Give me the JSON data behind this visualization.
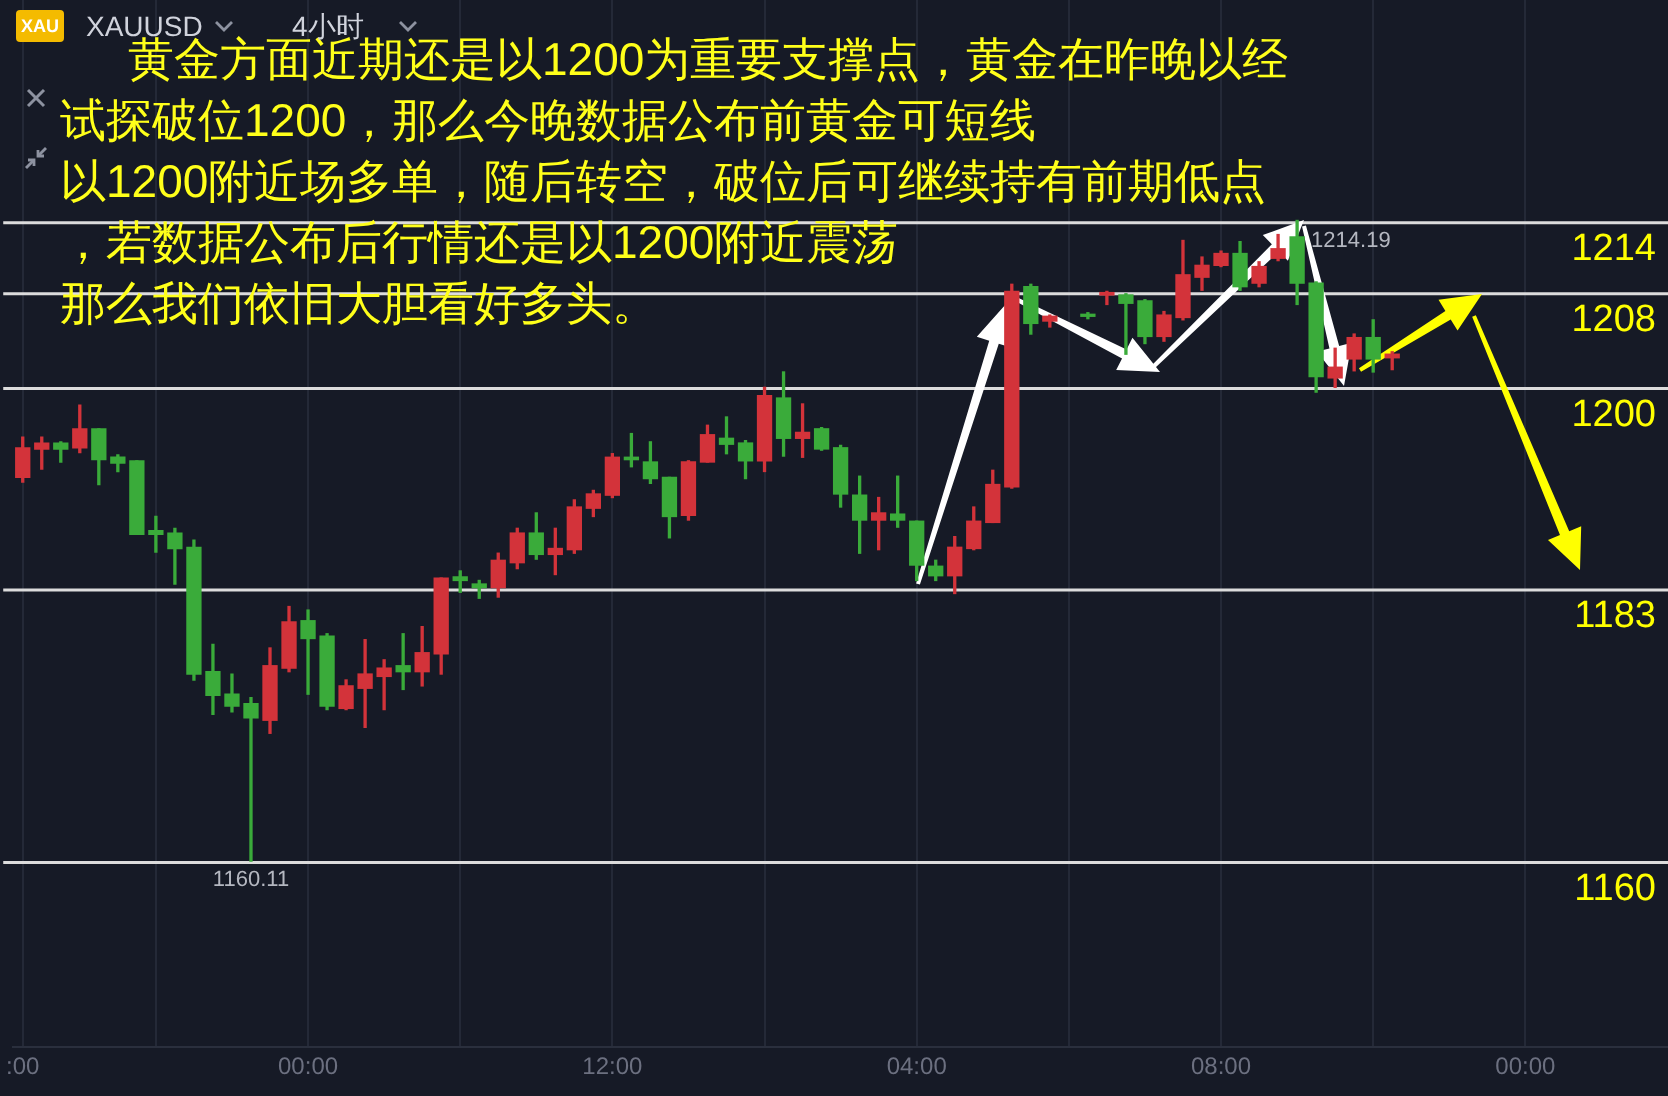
{
  "chart_data": {
    "type": "candlestick",
    "title": "XAUUSD",
    "subtitle": "4小时",
    "categories": [
      ":00",
      null,
      null,
      null,
      null,
      null,
      null,
      null,
      null,
      null,
      null,
      null,
      null,
      null,
      null,
      "00:00",
      null,
      null,
      null,
      null,
      null,
      null,
      null,
      null,
      null,
      null,
      null,
      null,
      null,
      null,
      null,
      "12:00",
      null,
      null,
      null,
      null,
      null,
      null,
      null,
      null,
      null,
      null,
      null,
      null,
      null,
      null,
      null,
      "04:00",
      null,
      null,
      null,
      null,
      null,
      null,
      null,
      null,
      null,
      null,
      null,
      null,
      null,
      null,
      null,
      "08:00",
      null,
      null,
      null,
      null,
      null,
      null,
      null,
      null,
      null,
      null,
      null,
      null,
      null,
      null,
      null,
      "00:00",
      null,
      null,
      null,
      null,
      null,
      null,
      null
    ],
    "ohlc": [
      [
        1192.5,
        1195.9,
        1192.1,
        1195.0
      ],
      [
        1194.9,
        1195.9,
        1193.2,
        1195.4
      ],
      [
        1195.4,
        1195.5,
        1193.8,
        1194.9
      ],
      [
        1195.0,
        1198.6,
        1194.6,
        1196.6
      ],
      [
        1196.6,
        1196.6,
        1191.9,
        1194.0
      ],
      [
        1194.2,
        1194.4,
        1193.0,
        1193.7
      ],
      [
        1193.9,
        1193.9,
        1187.7,
        1187.7
      ],
      [
        1188.0,
        1189.2,
        1186.2,
        1187.7
      ],
      [
        1187.8,
        1188.2,
        1183.5,
        1186.5
      ],
      [
        1186.6,
        1187.2,
        1175.4,
        1175.9
      ],
      [
        1176.1,
        1178.4,
        1172.5,
        1174.1
      ],
      [
        1174.2,
        1175.9,
        1172.7,
        1173.2
      ],
      [
        1173.4,
        1173.9,
        1160.11,
        1172.2
      ],
      [
        1172.0,
        1178.1,
        1170.9,
        1176.6
      ],
      [
        1176.4,
        1181.6,
        1176.1,
        1180.3
      ],
      [
        1180.4,
        1181.3,
        1174.2,
        1178.9
      ],
      [
        1179.1,
        1179.3,
        1172.9,
        1173.2
      ],
      [
        1173.0,
        1175.4,
        1172.9,
        1174.9
      ],
      [
        1174.7,
        1178.8,
        1171.4,
        1175.9
      ],
      [
        1175.7,
        1177.1,
        1172.9,
        1176.4
      ],
      [
        1176.6,
        1179.3,
        1174.6,
        1176.1
      ],
      [
        1176.1,
        1179.9,
        1174.9,
        1177.7
      ],
      [
        1177.6,
        1184.0,
        1175.9,
        1184.0
      ],
      [
        1184.1,
        1184.6,
        1182.8,
        1183.8
      ],
      [
        1183.5,
        1183.8,
        1182.3,
        1183.2
      ],
      [
        1183.2,
        1186.1,
        1182.4,
        1185.5
      ],
      [
        1185.3,
        1188.2,
        1184.8,
        1187.8
      ],
      [
        1187.8,
        1189.5,
        1185.6,
        1186.0
      ],
      [
        1186.0,
        1188.2,
        1184.3,
        1186.5
      ],
      [
        1186.4,
        1190.6,
        1186.1,
        1190.0
      ],
      [
        1189.9,
        1191.4,
        1189.2,
        1191.1
      ],
      [
        1191.0,
        1194.5,
        1190.8,
        1194.2
      ],
      [
        1194.2,
        1196.2,
        1193.4,
        1194.0
      ],
      [
        1193.8,
        1195.5,
        1192.0,
        1192.4
      ],
      [
        1192.5,
        1192.5,
        1187.4,
        1189.2
      ],
      [
        1189.3,
        1193.9,
        1188.9,
        1193.8
      ],
      [
        1193.8,
        1196.9,
        1193.8,
        1196.1
      ],
      [
        1195.8,
        1197.6,
        1194.5,
        1195.3
      ],
      [
        1195.4,
        1195.6,
        1192.4,
        1193.9
      ],
      [
        1193.9,
        1200.1,
        1193.0,
        1199.4
      ],
      [
        1199.2,
        1201.4,
        1194.3,
        1195.8
      ],
      [
        1195.8,
        1198.7,
        1194.2,
        1196.3
      ],
      [
        1196.6,
        1196.7,
        1194.8,
        1194.9
      ],
      [
        1195.0,
        1195.2,
        1190.0,
        1191.1
      ],
      [
        1191.0,
        1192.6,
        1186.1,
        1188.9
      ],
      [
        1188.9,
        1190.8,
        1186.4,
        1189.5
      ],
      [
        1189.4,
        1192.6,
        1188.3,
        1188.9
      ],
      [
        1188.8,
        1188.8,
        1183.8,
        1185.1
      ],
      [
        1185.0,
        1185.5,
        1183.8,
        1184.2
      ],
      [
        1184.2,
        1187.5,
        1182.7,
        1186.6
      ],
      [
        1186.5,
        1190.0,
        1186.4,
        1188.8
      ],
      [
        1188.7,
        1193.1,
        1188.7,
        1191.9
      ],
      [
        1191.7,
        1208.8,
        1191.6,
        1208.2
      ],
      [
        1208.6,
        1208.8,
        1204.6,
        1205.5
      ],
      [
        1205.7,
        1206.2,
        1205.2,
        1206.1
      ],
      null,
      [
        1206.2,
        1206.4,
        1205.9,
        1206.1
      ],
      [
        1207.9,
        1208.2,
        1207.1,
        1208.1
      ],
      [
        1207.9,
        1208.0,
        1202.9,
        1207.2
      ],
      [
        1207.4,
        1207.5,
        1203.8,
        1204.4
      ],
      [
        1204.4,
        1206.5,
        1204.0,
        1206.2
      ],
      [
        1206.0,
        1212.5,
        1205.8,
        1209.6
      ],
      [
        1209.4,
        1211.1,
        1208.3,
        1210.4
      ],
      [
        1210.4,
        1211.6,
        1210.3,
        1211.4
      ],
      [
        1211.4,
        1212.4,
        1208.3,
        1208.6
      ],
      [
        1208.9,
        1210.7,
        1208.6,
        1210.3
      ],
      [
        1211.0,
        1213.0,
        1210.8,
        1211.8
      ],
      [
        1212.8,
        1214.19,
        1207.1,
        1208.9
      ],
      [
        1208.9,
        1209.0,
        1199.7,
        1201.0
      ],
      [
        1200.9,
        1203.4,
        1200.1,
        1201.8
      ],
      [
        1202.5,
        1204.6,
        1201.5,
        1204.3
      ],
      [
        1204.3,
        1205.8,
        1201.4,
        1202.5
      ],
      [
        1202.6,
        1203.1,
        1201.6,
        1202.9
      ],
      null,
      null,
      null,
      null,
      null,
      null,
      null,
      null,
      null,
      null,
      null,
      null,
      null,
      null
    ],
    "colors": [
      "#d3333a",
      "#d3333a",
      "#3aab3a",
      "#d3333a",
      "#3aab3a",
      "#3aab3a",
      "#3aab3a",
      "#3aab3a",
      "#3aab3a",
      "#3aab3a",
      "#3aab3a",
      "#3aab3a",
      "#3aab3a",
      "#d3333a",
      "#d3333a",
      "#3aab3a",
      "#3aab3a",
      "#d3333a",
      "#d3333a",
      "#d3333a",
      "#3aab3a",
      "#d3333a",
      "#d3333a",
      "#3aab3a",
      "#3aab3a",
      "#d3333a",
      "#d3333a",
      "#3aab3a",
      "#d3333a",
      "#d3333a",
      "#d3333a",
      "#d3333a",
      "#3aab3a",
      "#3aab3a",
      "#3aab3a",
      "#d3333a",
      "#d3333a",
      "#3aab3a",
      "#3aab3a",
      "#d3333a",
      "#3aab3a",
      "#d3333a",
      "#3aab3a",
      "#3aab3a",
      "#3aab3a",
      "#d3333a",
      "#3aab3a",
      "#3aab3a",
      "#3aab3a",
      "#d3333a",
      "#d3333a",
      "#d3333a",
      "#d3333a",
      "#3aab3a",
      "#d3333a",
      null,
      "#3aab3a",
      "#d3333a",
      "#3aab3a",
      "#3aab3a",
      "#d3333a",
      "#d3333a",
      "#d3333a",
      "#d3333a",
      "#3aab3a",
      "#d3333a",
      "#d3333a",
      "#3aab3a",
      "#3aab3a",
      "#d3333a",
      "#d3333a",
      "#3aab3a",
      "#d3333a",
      null,
      null,
      null,
      null,
      null,
      null,
      null,
      null,
      null,
      null,
      null,
      null,
      null,
      null
    ],
    "ylim": [
      1144.4,
      1232.8
    ],
    "tick_labels": "x",
    "grid": "x",
    "ref_lines": [
      {
        "axis": "y",
        "value": 1214,
        "label": "1214",
        "color": "#dcdcdc"
      },
      {
        "axis": "y",
        "value": 1208,
        "label": "1208",
        "color": "#dcdcdc"
      },
      {
        "axis": "y",
        "value": 1200,
        "label": "1200",
        "color": "#dcdcdc"
      },
      {
        "axis": "y",
        "value": 1183,
        "label": "1183",
        "color": "#dcdcdc"
      },
      {
        "axis": "y",
        "value": 1160,
        "label": "1160",
        "color": "#dcdcdc"
      }
    ],
    "annotations": [
      {
        "text": "1160.11",
        "y": 1160.11
      },
      {
        "text": "1214.19",
        "y": 1214.19
      },
      "XAU",
      "黄金方面近期还是以1200为重要支撑点，黄金在昨晚以经",
      "试探破位1200，那么今晚数据公布前黄金可短线",
      "以1200附近场多单，随后转空，破位后可继续持有前期低点",
      "，若数据公布后行情还是以1200附近震荡",
      "那么我们依旧大胆看好多头。"
    ]
  }
}
